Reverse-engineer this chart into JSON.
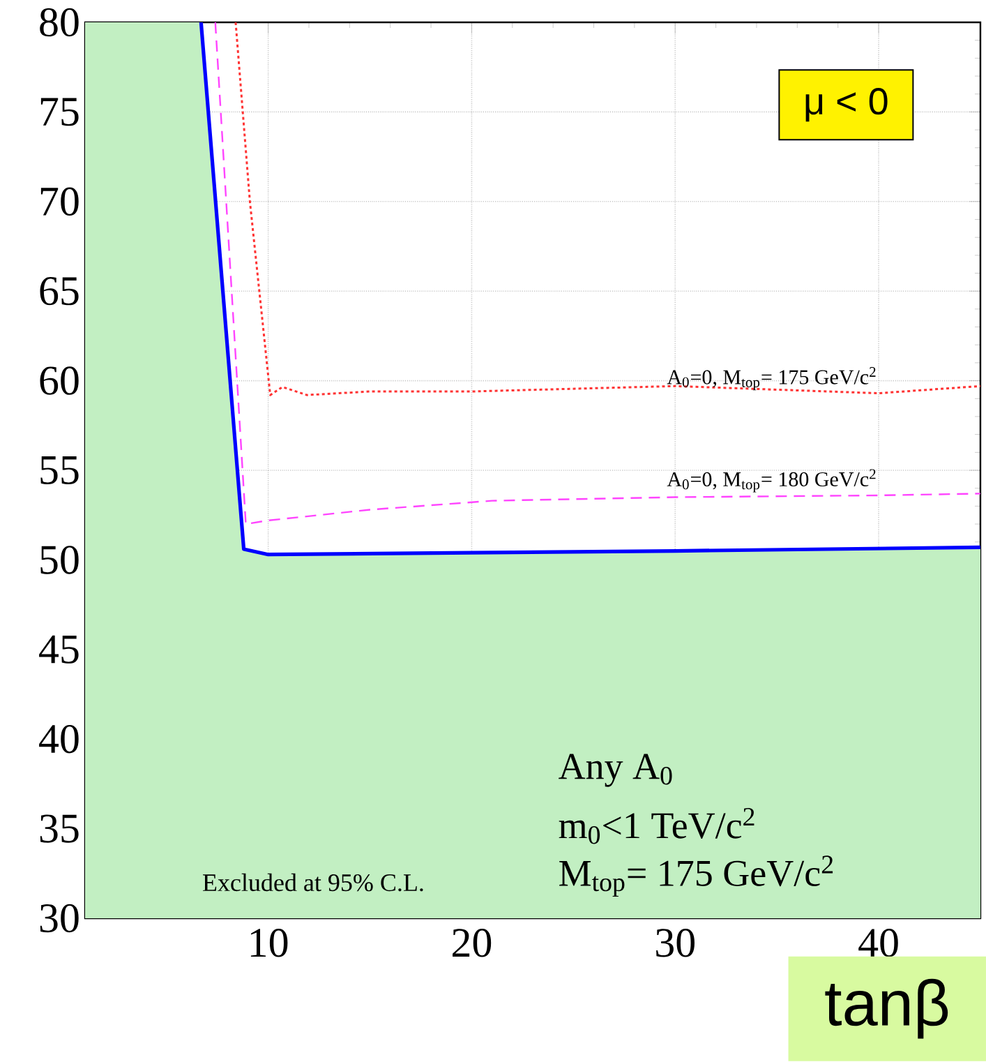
{
  "chart_data": {
    "type": "line",
    "xlabel": "tanβ",
    "series": [
      {
        "type": "area",
        "color": "#c2efc2",
        "x": [
          1,
          6.7,
          8.8,
          10,
          20,
          30,
          45
        ],
        "values": [
          80,
          80,
          50.6,
          50.3,
          50.4,
          50.5,
          50.7
        ]
      },
      {
        "color": "#0000ff",
        "line_style": "solid",
        "x": [
          6.7,
          8.8,
          10,
          20,
          30,
          45
        ],
        "values": [
          80,
          50.6,
          50.3,
          50.4,
          50.5,
          50.7
        ]
      },
      {
        "name": "A$_{0}$=0, M$_{top}$= 175 GeV/c$^{2}$",
        "color": "#ff3333",
        "line_style": "dotted",
        "x": [
          8.4,
          9.1,
          10.1,
          10.7,
          11.9,
          15,
          20,
          30,
          40,
          45
        ],
        "values": [
          80,
          70,
          59.2,
          59.65,
          59.2,
          59.4,
          59.4,
          59.7,
          59.3,
          59.7
        ]
      },
      {
        "name": "A$_{0}$=0, M$_{top}$= 180 GeV/c$^{2}$",
        "color": "#ff44ff",
        "line_style": "dashed",
        "x": [
          7.4,
          8.9,
          10,
          15,
          21,
          30,
          40,
          45
        ],
        "values": [
          80,
          52.0,
          52.2,
          52.8,
          53.3,
          53.5,
          53.6,
          53.7
        ]
      }
    ],
    "xlim": [
      1,
      45
    ],
    "ylim": [
      30,
      80
    ],
    "xticks": [
      10,
      20,
      30,
      40
    ],
    "yticks": [
      30,
      35,
      40,
      45,
      50,
      55,
      60,
      65,
      70,
      75,
      80
    ],
    "grid": true,
    "annotations": [
      "μ < 0",
      "Excluded at 95% C.L.",
      "Any A$_{0}$",
      "m$_{0}$<1 TeV/c$^{2}$",
      "M$_{top}$= 175 GeV/c$^{2}$"
    ]
  }
}
